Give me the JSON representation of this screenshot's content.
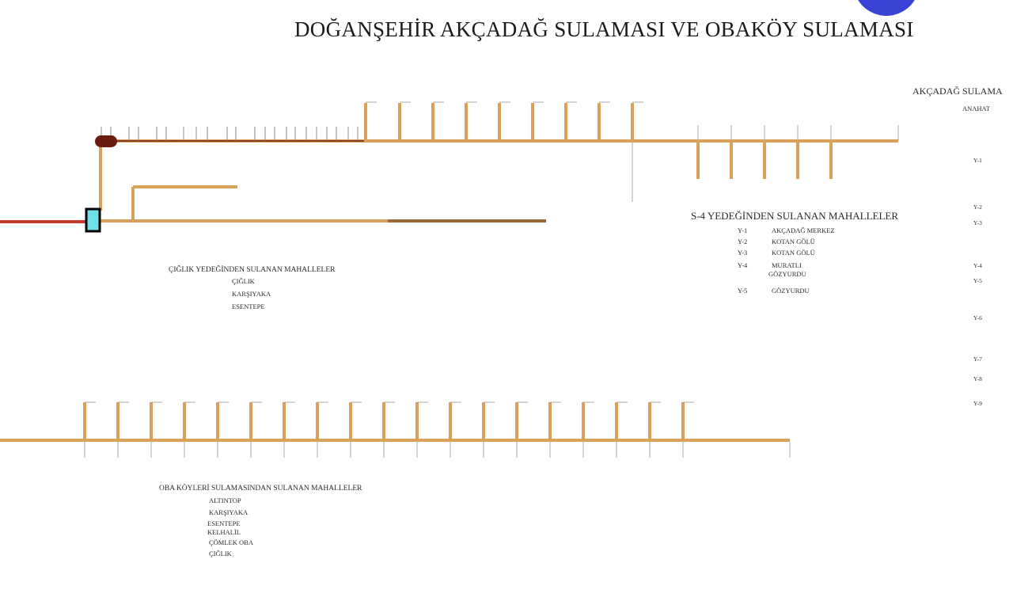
{
  "title": "DOĞANŞEHİR AKÇADAĞ SULAMASI VE OBAKÖY SULAMASI",
  "colors": {
    "pipe": "#d9a25a",
    "pipe_dark": "#9a6a3a",
    "feed_line": "#c0392b",
    "reservoir": "#6b1a0e",
    "pool": "#6fe0ea",
    "badge": "#3b43d6"
  },
  "s4": {
    "heading": "S-4 YEDEĞİNDEN SULANAN  MAHALLELER",
    "rows": [
      {
        "code": "Y-1",
        "name": "AKÇADAĞ MERKEZ"
      },
      {
        "code": "Y-2",
        "name": "KOTAN GÖLÜ"
      },
      {
        "code": "Y-3",
        "name": "KOTAN GÖLÜ"
      },
      {
        "code": "Y-4",
        "name": "MURATLI",
        "name2": "GÖZYURDU"
      },
      {
        "code": "Y-5",
        "name": "GÖZYURDU"
      }
    ]
  },
  "ciglik": {
    "heading": "ÇIĞLIK YEDEĞİNDEN SULANAN  MAHALLELER",
    "items": [
      "ÇIĞLIK",
      "KARŞIYAKA",
      "ESENTEPE"
    ]
  },
  "oba": {
    "heading": "OBA KÖYLERİ SULAMASINDAN SULANAN  MAHALLELER",
    "items": [
      "ALTINTOP",
      "KARŞIYAKA",
      "ESENTEPE",
      "KELHALİL",
      "ÇÖMLEK OBA",
      "ÇIĞLIK"
    ]
  },
  "akcadag": {
    "heading": "AKÇADAĞ SULAMA",
    "subheading": "ANAHAT",
    "codes": [
      "Y-1",
      "Y-2",
      "Y-3",
      "Y-4",
      "Y-5",
      "Y-6",
      "Y-7",
      "Y-8",
      "Y-9"
    ]
  }
}
